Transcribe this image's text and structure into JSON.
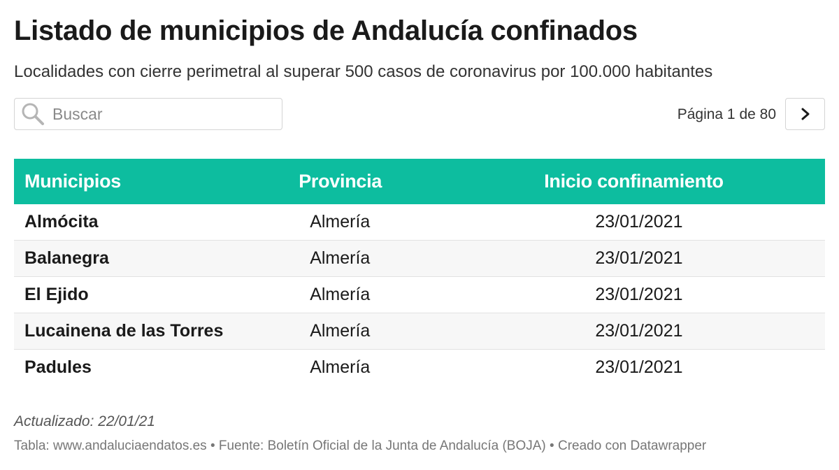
{
  "header": {
    "title": "Listado de municipios de Andalucía confinados",
    "subtitle": "Localidades con cierre perimetral al superar 500 casos de coronavirus por 100.000 habitantes"
  },
  "search": {
    "placeholder": "Buscar",
    "icon": "search-icon"
  },
  "pagination": {
    "label": "Página 1 de 80",
    "next_icon": "chevron-right-icon"
  },
  "table": {
    "header_color": "#0dbd9f",
    "columns": [
      "Municipios",
      "Provincia",
      "Inicio confinamiento"
    ],
    "rows": [
      [
        "Almócita",
        "Almería",
        "23/01/2021"
      ],
      [
        "Balanegra",
        "Almería",
        "23/01/2021"
      ],
      [
        "El Ejido",
        "Almería",
        "23/01/2021"
      ],
      [
        "Lucainena de las Torres",
        "Almería",
        "23/01/2021"
      ],
      [
        "Padules",
        "Almería",
        "23/01/2021"
      ]
    ]
  },
  "footer": {
    "updated": "Actualizado: 22/01/21",
    "credits": "Tabla: www.andaluciaendatos.es • Fuente: Boletín Oficial de la Junta de Andalucía (BOJA) • Creado con Datawrapper"
  }
}
